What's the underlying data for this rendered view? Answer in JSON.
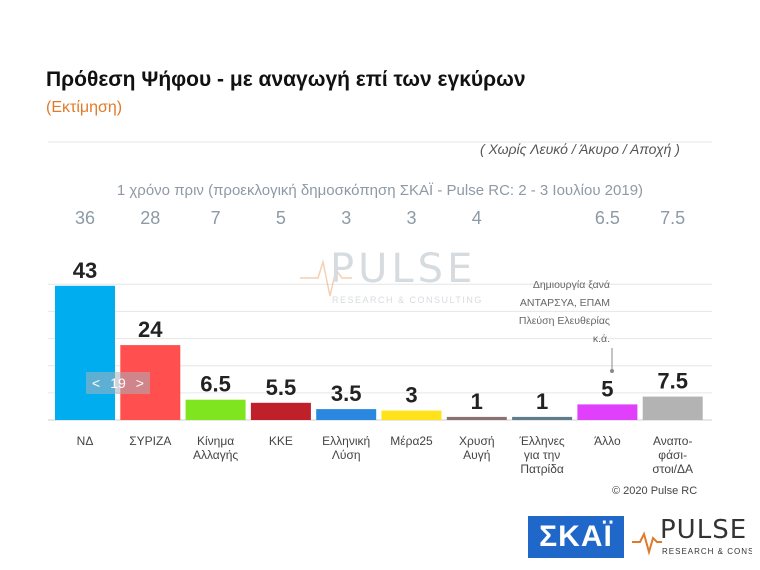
{
  "header": {
    "title": "Πρόθεση Ψήφου - με αναγωγή επί των εγκύρων",
    "subtitle": "(Εκτίμηση)",
    "note": "( Χωρίς Λευκό / Άκυρο / Αποχή )",
    "prev_caption": "1 χρόνο πριν (προεκλογική δημοσκόπηση ΣΚΑΪ - Pulse RC:  2 - 3 Ιουλίου 2019)"
  },
  "chart_data": {
    "type": "bar",
    "categories": [
      "ΝΔ",
      "ΣΥΡΙΖΑ",
      "Κίνημα Αλλαγής",
      "ΚΚΕ",
      "Ελληνική Λύση",
      "Μέρα25",
      "Χρυσή Αυγή",
      "Έλληνες για την Πατρίδα",
      "Άλλο",
      "Αναπο-φάσι-στοι/ΔΑ"
    ],
    "category_lines": [
      [
        "ΝΔ"
      ],
      [
        "ΣΥΡΙΖΑ"
      ],
      [
        "Κίνημα",
        "Αλλαγής"
      ],
      [
        "ΚΚΕ"
      ],
      [
        "Ελληνική",
        "Λύση"
      ],
      [
        "Μέρα25"
      ],
      [
        "Χρυσή",
        "Αυγή"
      ],
      [
        "Έλληνες",
        "για την",
        "Πατρίδα"
      ],
      [
        "Άλλο"
      ],
      [
        "Αναπο-",
        "φάσι-",
        "στοι/ΔΑ"
      ]
    ],
    "values": [
      43,
      24,
      6.5,
      5.5,
      3.5,
      3,
      1,
      1,
      5,
      7.5
    ],
    "value_labels": [
      "43",
      "24",
      "6.5",
      "5.5",
      "3.5",
      "3",
      "1",
      "1",
      "5",
      "7.5"
    ],
    "previous_values": [
      "36",
      "28",
      "7",
      "5",
      "3",
      "3",
      "4",
      "",
      "6.5",
      "7.5"
    ],
    "colors": [
      "#00aeef",
      "#ff4f4f",
      "#7fe51e",
      "#c0202a",
      "#2b88e0",
      "#ffe21a",
      "#8a7272",
      "#607d8b",
      "#e040fb",
      "#b3b3b3"
    ],
    "ylim": [
      0,
      45
    ],
    "grid": true
  },
  "watermark": {
    "main": "PULSE",
    "sub": "RESEARCH & CONSULTING"
  },
  "annotation": {
    "lines": [
      "Δημιουργία ξανά",
      "ΑΝΤΑΡΣΥΑ, ΕΠΑΜ",
      "Πλεύση Ελευθερίας",
      "κ.ά."
    ]
  },
  "pager": {
    "prev": "<",
    "label": "19",
    "next": ">"
  },
  "footer": {
    "copyright": "© 2020 Pulse RC",
    "skai_logo": "ΣΚΑΪ",
    "pulse_logo": "PULSE",
    "pulse_logo_sub": "RESEARCH & CONSULTING"
  }
}
